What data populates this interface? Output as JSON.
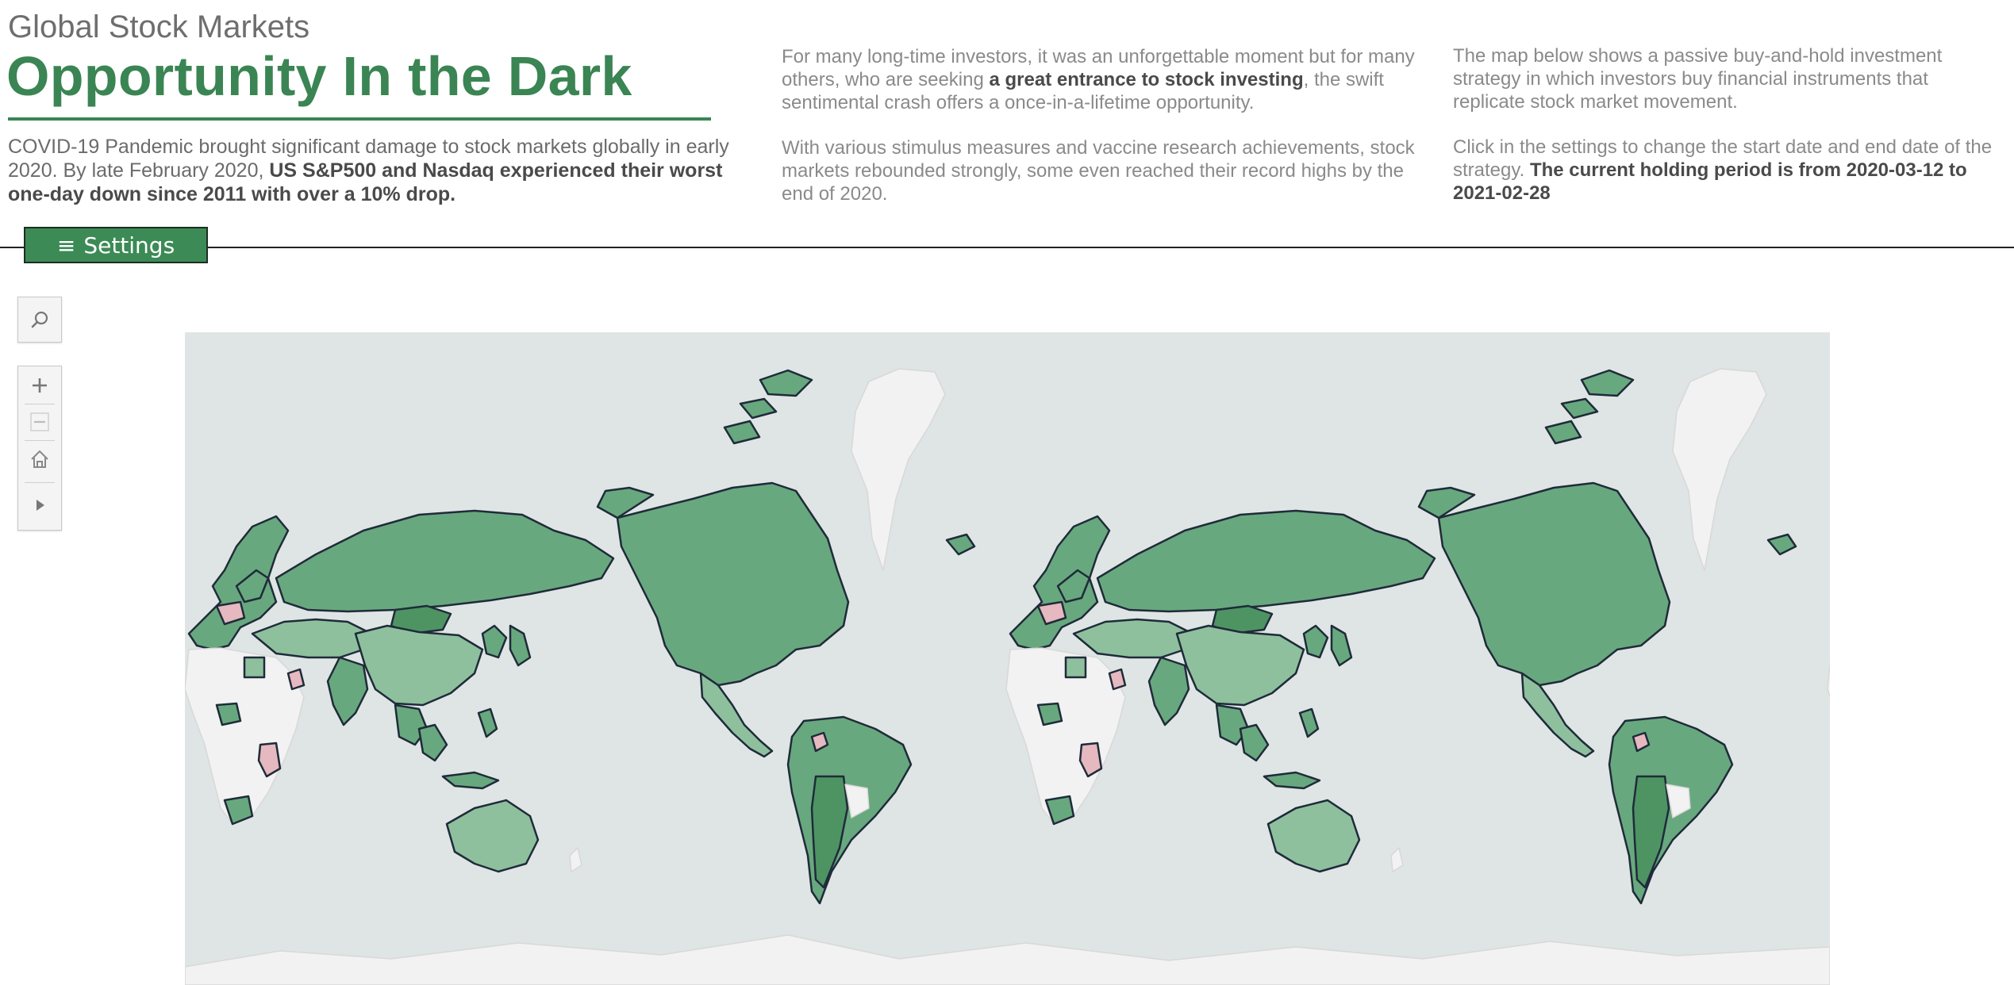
{
  "header": {
    "kicker": "Global Stock Markets",
    "title": "Opportunity In the Dark",
    "intro": {
      "text": "COVID-19 Pandemic brought significant damage to stock markets globally in early 2020. By late February 2020, ",
      "bold": "US S&P500 and Nasdaq experienced their worst one-day down since 2011 with over a 10% drop."
    }
  },
  "column2": {
    "p1_pre": "For many long-time investors, it was an unforgettable moment but for many others, who are seeking ",
    "p1_bold": "a great entrance to stock investing",
    "p1_post": ", the swift sentimental crash offers a once-in-a-lifetime opportunity.",
    "p2": "With various stimulus measures and vaccine research achievements, stock markets rebounded strongly, some even reached their record highs by the end of 2020."
  },
  "column3": {
    "p1": "The map below shows a passive buy-and-hold investment strategy in which investors buy financial instruments that replicate stock market movement.",
    "p2_pre": "Click in the  settings  to change the start date and end date of the strategy. ",
    "p2_bold": "The current holding period is from  2020-03-12 to 2021-02-28"
  },
  "settings": {
    "icon": "hamburger-icon",
    "label": "Settings"
  },
  "map_tools": {
    "search": "search-icon",
    "zoom_in": "plus-icon",
    "zoom_out": "minus-icon",
    "home": "home-icon",
    "expand": "play-arrow-icon"
  },
  "colors": {
    "accent": "#3a8553",
    "gain": "#68a87e",
    "gain_light": "#8ec09e",
    "gain_strong": "#4e9463",
    "loss": "#e6b8bf",
    "no_data": "#f2f2f2",
    "ocean": "#dee5e4"
  }
}
